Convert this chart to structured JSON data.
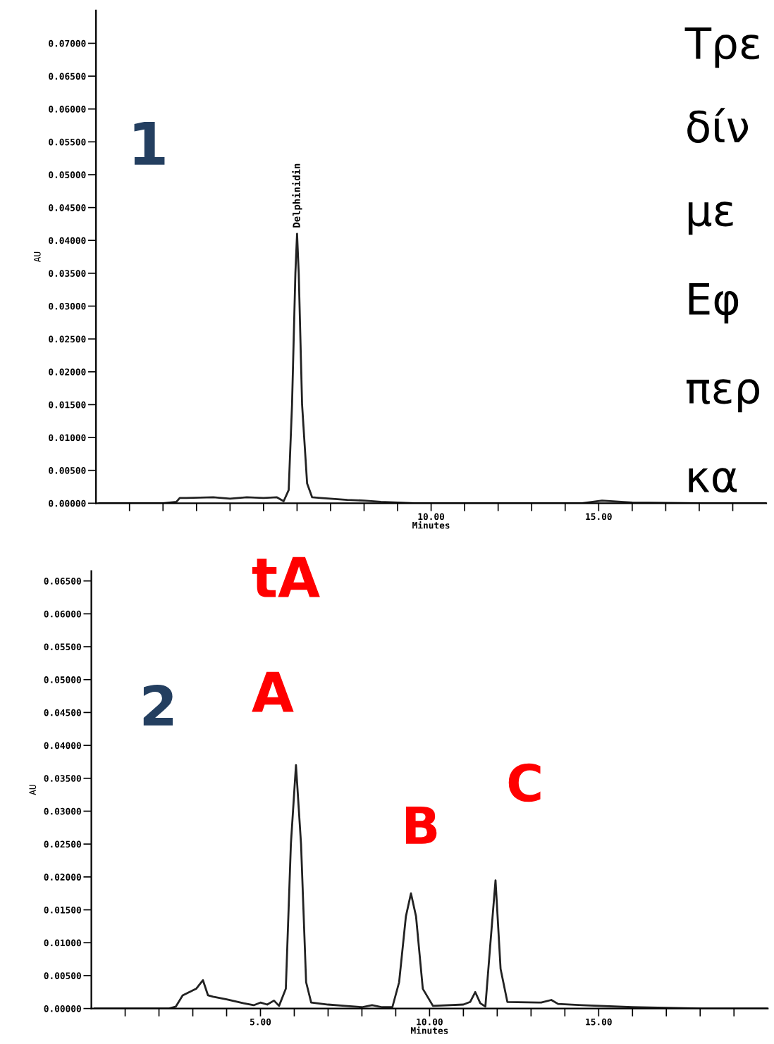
{
  "chart_data": [
    {
      "type": "line",
      "xlabel": "Minutes",
      "ylabel": "AU",
      "xlim": [
        0,
        20
      ],
      "ylim": [
        0,
        0.075
      ],
      "xticks": [
        {
          "value": 1,
          "label": null
        },
        {
          "value": 2,
          "label": null
        },
        {
          "value": 3,
          "label": null
        },
        {
          "value": 4,
          "label": null
        },
        {
          "value": 5,
          "label": null
        },
        {
          "value": 6,
          "label": null
        },
        {
          "value": 7,
          "label": null
        },
        {
          "value": 8,
          "label": null
        },
        {
          "value": 9,
          "label": null
        },
        {
          "value": 10,
          "label": "10.00"
        },
        {
          "value": 11,
          "label": null
        },
        {
          "value": 12,
          "label": null
        },
        {
          "value": 13,
          "label": null
        },
        {
          "value": 14,
          "label": null
        },
        {
          "value": 15,
          "label": "15.00"
        },
        {
          "value": 16,
          "label": null
        },
        {
          "value": 17,
          "label": null
        },
        {
          "value": 18,
          "label": null
        },
        {
          "value": 19,
          "label": null
        }
      ],
      "yticks": [
        {
          "value": 0,
          "label": "0.00000"
        },
        {
          "value": 0.005,
          "label": "0.00500"
        },
        {
          "value": 0.01,
          "label": "0.01000"
        },
        {
          "value": 0.015,
          "label": "0.01500"
        },
        {
          "value": 0.02,
          "label": "0.02000"
        },
        {
          "value": 0.025,
          "label": "0.02500"
        },
        {
          "value": 0.03,
          "label": "0.03000"
        },
        {
          "value": 0.035,
          "label": "0.03500"
        },
        {
          "value": 0.04,
          "label": "0.04000"
        },
        {
          "value": 0.045,
          "label": "0.04500"
        },
        {
          "value": 0.05,
          "label": "0.05000"
        },
        {
          "value": 0.055,
          "label": "0.05500"
        },
        {
          "value": 0.06,
          "label": "0.06000"
        },
        {
          "value": 0.065,
          "label": "0.06500"
        },
        {
          "value": 0.07,
          "label": "0.07000"
        }
      ],
      "grid": false,
      "marker": "none",
      "line_style": "solid",
      "series": [
        {
          "color": "#222222",
          "x": [
            0.1,
            2.0,
            2.4,
            2.5,
            2.7,
            3.5,
            4.0,
            4.5,
            5.0,
            5.4,
            5.6,
            5.75,
            5.85,
            5.95,
            6.0,
            6.05,
            6.15,
            6.3,
            6.45,
            6.7,
            7.5,
            8.0,
            8.5,
            9.0,
            9.5,
            11.0,
            14.5,
            15.1,
            16.0,
            18.0,
            20.0
          ],
          "values": [
            0,
            0,
            0.0002,
            0.0008,
            0.0008,
            0.0009,
            0.0007,
            0.0009,
            0.0008,
            0.0009,
            0.0003,
            0.002,
            0.015,
            0.035,
            0.041,
            0.035,
            0.015,
            0.003,
            0.0009,
            0.0008,
            0.0005,
            0.0004,
            0.0002,
            0.0001,
            0,
            0,
            0,
            0.0004,
            0.0001,
            0,
            0
          ]
        }
      ],
      "annotations": [
        {
          "text": "Delphinidin",
          "x": 6.0,
          "y": 0.041
        },
        "1",
        "Τρε",
        "δίν",
        "με",
        "Εφ",
        "περ",
        "κα"
      ]
    },
    {
      "type": "line",
      "xlabel": "Minutes",
      "ylabel": "AU",
      "xlim": [
        0,
        20
      ],
      "ylim": [
        0,
        0.0665
      ],
      "xticks": [
        {
          "value": 1,
          "label": null
        },
        {
          "value": 2,
          "label": null
        },
        {
          "value": 3,
          "label": null
        },
        {
          "value": 4,
          "label": null
        },
        {
          "value": 5,
          "label": "5.00"
        },
        {
          "value": 6,
          "label": null
        },
        {
          "value": 7,
          "label": null
        },
        {
          "value": 8,
          "label": null
        },
        {
          "value": 9,
          "label": null
        },
        {
          "value": 10,
          "label": "10.00"
        },
        {
          "value": 11,
          "label": null
        },
        {
          "value": 12,
          "label": null
        },
        {
          "value": 13,
          "label": null
        },
        {
          "value": 14,
          "label": null
        },
        {
          "value": 15,
          "label": "15.00"
        },
        {
          "value": 16,
          "label": null
        },
        {
          "value": 17,
          "label": null
        },
        {
          "value": 18,
          "label": null
        },
        {
          "value": 19,
          "label": null
        }
      ],
      "yticks": [
        {
          "value": 0,
          "label": "0.00000"
        },
        {
          "value": 0.005,
          "label": "0.00500"
        },
        {
          "value": 0.01,
          "label": "0.01000"
        },
        {
          "value": 0.015,
          "label": "0.01500"
        },
        {
          "value": 0.02,
          "label": "0.02000"
        },
        {
          "value": 0.025,
          "label": "0.02500"
        },
        {
          "value": 0.03,
          "label": "0.03000"
        },
        {
          "value": 0.035,
          "label": "0.03500"
        },
        {
          "value": 0.04,
          "label": "0.04000"
        },
        {
          "value": 0.045,
          "label": "0.04500"
        },
        {
          "value": 0.05,
          "label": "0.05000"
        },
        {
          "value": 0.055,
          "label": "0.05500"
        },
        {
          "value": 0.06,
          "label": "0.06000"
        },
        {
          "value": 0.065,
          "label": "0.06500"
        }
      ],
      "grid": false,
      "marker": "none",
      "line_style": "solid",
      "series": [
        {
          "color": "#222222",
          "x": [
            0.1,
            2.3,
            2.5,
            2.7,
            2.9,
            3.1,
            3.3,
            3.45,
            3.6,
            4.0,
            4.5,
            4.8,
            5.0,
            5.2,
            5.4,
            5.55,
            5.75,
            5.9,
            6.05,
            6.2,
            6.35,
            6.5,
            7.0,
            7.5,
            8.0,
            8.3,
            8.6,
            8.9,
            9.1,
            9.3,
            9.45,
            9.6,
            9.8,
            10.1,
            11.0,
            11.2,
            11.35,
            11.5,
            11.65,
            11.8,
            11.95,
            12.1,
            12.3,
            13.3,
            13.6,
            13.8,
            14.5,
            16.0,
            18.0,
            20.0
          ],
          "values": [
            0,
            0,
            0.0003,
            0.002,
            0.0025,
            0.003,
            0.0043,
            0.002,
            0.0018,
            0.0014,
            0.0008,
            0.0005,
            0.0009,
            0.0006,
            0.0012,
            0.0004,
            0.003,
            0.025,
            0.037,
            0.025,
            0.004,
            0.0009,
            0.0006,
            0.0004,
            0.0002,
            0.0005,
            0.0002,
            0.0002,
            0.004,
            0.014,
            0.0175,
            0.014,
            0.003,
            0.0004,
            0.0006,
            0.001,
            0.0025,
            0.0008,
            0.0003,
            0.01,
            0.0195,
            0.006,
            0.001,
            0.0009,
            0.0013,
            0.0007,
            0.0005,
            0.0002,
            0,
            0
          ]
        }
      ],
      "annotations": [
        "tA",
        "A",
        {
          "text": "B",
          "x": 9.45,
          "y": 0.0175
        },
        {
          "text": "C",
          "x": 11.95,
          "y": 0.0195
        },
        "2"
      ]
    }
  ]
}
